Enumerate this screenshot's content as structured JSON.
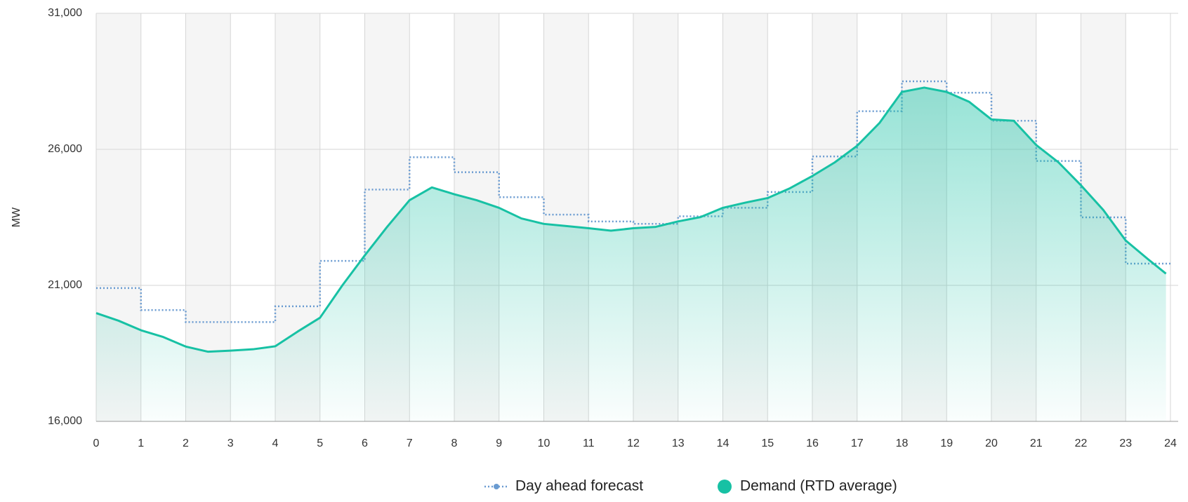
{
  "chart_data": {
    "type": "line",
    "ylabel": "MW",
    "xlim": [
      0,
      24
    ],
    "xticks": [
      0,
      1,
      2,
      3,
      4,
      5,
      6,
      7,
      8,
      9,
      10,
      11,
      12,
      13,
      14,
      15,
      16,
      17,
      18,
      19,
      20,
      21,
      22,
      23,
      24
    ],
    "ylim": [
      16000,
      31000
    ],
    "yticks": [
      {
        "value": 16000,
        "label": "16,000"
      },
      {
        "value": 21000,
        "label": "21,000"
      },
      {
        "value": 26000,
        "label": "26,000"
      },
      {
        "value": 31000,
        "label": "31,000"
      }
    ],
    "grid": true,
    "legend": "bottom",
    "series": [
      {
        "name": "Day ahead forecast",
        "color": "#6a9bd1",
        "style": "step-dotted",
        "x": [
          0,
          1,
          2,
          3,
          4,
          5,
          6,
          7,
          8,
          9,
          10,
          11,
          12,
          13,
          14,
          15,
          16,
          17,
          18,
          19,
          20,
          21,
          22,
          23
        ],
        "values": [
          20900,
          20090,
          19650,
          19650,
          20230,
          21900,
          24520,
          25710,
          25160,
          24240,
          23600,
          23350,
          23260,
          23540,
          23850,
          24430,
          25740,
          27400,
          28500,
          28080,
          27050,
          25570,
          23500,
          21800
        ]
      },
      {
        "name": "Demand (RTD average)",
        "color": "#17c1a4",
        "style": "area",
        "x": [
          0,
          0.5,
          1,
          1.5,
          2,
          2.5,
          3,
          3.5,
          4,
          4.5,
          5,
          5.5,
          6,
          6.5,
          7,
          7.5,
          8,
          8.5,
          9,
          9.5,
          10,
          10.5,
          11,
          11.5,
          12,
          12.5,
          13,
          13.5,
          14,
          14.5,
          15,
          15.5,
          16,
          16.5,
          17,
          17.5,
          18,
          18.5,
          19,
          19.5,
          20,
          20.5,
          21,
          21.5,
          22,
          22.5,
          23,
          23.5,
          23.9
        ],
        "values": [
          19980,
          19700,
          19350,
          19100,
          18750,
          18560,
          18600,
          18650,
          18760,
          19300,
          19810,
          21000,
          22100,
          23150,
          24130,
          24600,
          24350,
          24130,
          23850,
          23460,
          23260,
          23180,
          23100,
          23010,
          23100,
          23150,
          23350,
          23510,
          23850,
          24040,
          24210,
          24570,
          25020,
          25520,
          26130,
          26970,
          28110,
          28270,
          28110,
          27750,
          27100,
          27050,
          26160,
          25520,
          24680,
          23770,
          22650,
          21960,
          21430
        ]
      }
    ]
  }
}
